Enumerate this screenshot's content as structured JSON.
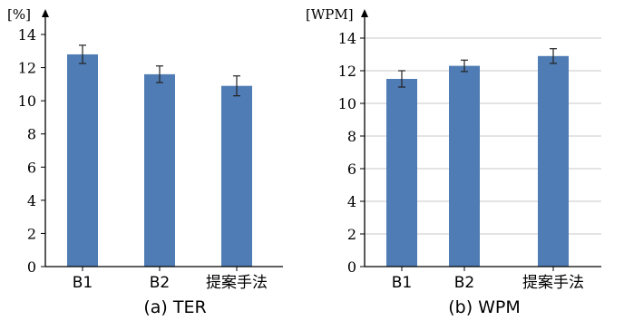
{
  "chart_data": [
    {
      "type": "bar",
      "title": "(a) TER",
      "ylabel": "[%]",
      "categories": [
        "B1",
        "B2",
        "提案手法"
      ],
      "values": [
        12.8,
        11.6,
        10.9
      ],
      "errors": [
        0.55,
        0.5,
        0.6
      ],
      "ylim": [
        0,
        14
      ],
      "yticks": [
        0,
        2,
        4,
        6,
        8,
        10,
        12,
        14
      ],
      "grid": false,
      "bar_color": "#4f7cb4",
      "error_color": "#222222"
    },
    {
      "type": "bar",
      "title": "(b) WPM",
      "ylabel": "[WPM]",
      "categories": [
        "B1",
        "B2",
        "提案手法"
      ],
      "values": [
        11.5,
        12.3,
        12.9
      ],
      "errors": [
        0.5,
        0.35,
        0.45
      ],
      "ylim": [
        0,
        14
      ],
      "yticks": [
        0,
        2,
        4,
        6,
        8,
        10,
        12,
        14
      ],
      "grid": true,
      "grid_color": "#c8c8c8",
      "bar_color": "#4f7cb4",
      "error_color": "#222222"
    }
  ]
}
